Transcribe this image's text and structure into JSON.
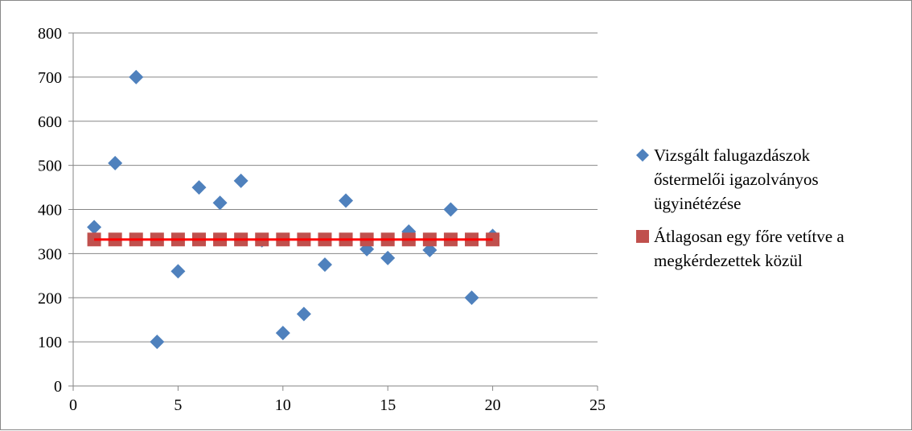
{
  "chart_data": {
    "type": "scatter",
    "xlim": [
      0,
      25
    ],
    "ylim": [
      0,
      800
    ],
    "x_ticks": [
      0,
      5,
      10,
      15,
      20,
      25
    ],
    "y_ticks": [
      0,
      100,
      200,
      300,
      400,
      500,
      600,
      700,
      800
    ],
    "grid": "horizontal",
    "legend_position": "right",
    "series": [
      {
        "name": "Vizsgált falugazdászok őstermelői igazolványos ügyinétézése",
        "marker": "diamond",
        "color": "#4F81BD",
        "points": [
          [
            1,
            360
          ],
          [
            2,
            505
          ],
          [
            3,
            700
          ],
          [
            4,
            100
          ],
          [
            5,
            260
          ],
          [
            6,
            450
          ],
          [
            7,
            415
          ],
          [
            8,
            465
          ],
          [
            9,
            330
          ],
          [
            10,
            120
          ],
          [
            11,
            163
          ],
          [
            12,
            275
          ],
          [
            13,
            420
          ],
          [
            14,
            310
          ],
          [
            15,
            290
          ],
          [
            16,
            350
          ],
          [
            17,
            308
          ],
          [
            18,
            400
          ],
          [
            19,
            200
          ],
          [
            20,
            340
          ]
        ]
      },
      {
        "name": "Átlagosan egy főre vetítve a megkérdezettek közül",
        "marker": "square",
        "color": "#C0504D",
        "line_color": "#FF0000",
        "points": [
          [
            1,
            332
          ],
          [
            2,
            332
          ],
          [
            3,
            332
          ],
          [
            4,
            332
          ],
          [
            5,
            332
          ],
          [
            6,
            332
          ],
          [
            7,
            332
          ],
          [
            8,
            332
          ],
          [
            9,
            332
          ],
          [
            10,
            332
          ],
          [
            11,
            332
          ],
          [
            12,
            332
          ],
          [
            13,
            332
          ],
          [
            14,
            332
          ],
          [
            15,
            332
          ],
          [
            16,
            332
          ],
          [
            17,
            332
          ],
          [
            18,
            332
          ],
          [
            19,
            332
          ],
          [
            20,
            332
          ]
        ]
      }
    ],
    "legend": {
      "entries": [
        {
          "lines": [
            "Vizsgált falugazdászok",
            "őstermelői igazolványos",
            "ügyinétézése"
          ]
        },
        {
          "lines": [
            "Átlagosan egy főre vetítve a",
            "megkérdezettek közül"
          ]
        }
      ]
    }
  }
}
